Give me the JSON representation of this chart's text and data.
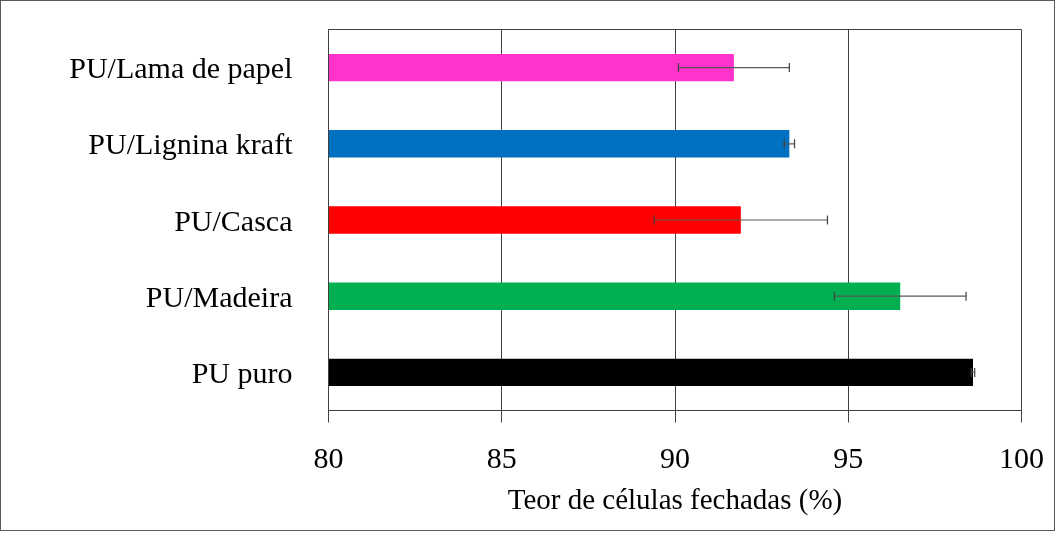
{
  "chart_data": {
    "type": "bar",
    "orientation": "horizontal",
    "categories": [
      "PU/Lama de papel",
      "PU/Lignina kraft",
      "PU/Casca",
      "PU/Madeira",
      "PU puro"
    ],
    "values": [
      91.7,
      93.3,
      91.9,
      96.5,
      98.6
    ],
    "colors": [
      "#ff33cc",
      "#0070c0",
      "#ff0000",
      "#00b050",
      "#000000"
    ],
    "errors": [
      1.6,
      0.15,
      2.5,
      1.9,
      0.05
    ],
    "xlim": [
      80,
      100
    ],
    "xticks": [
      80,
      85,
      90,
      95,
      100
    ],
    "xlabel": "Teor de células fechadas (%)",
    "grid": "x"
  }
}
